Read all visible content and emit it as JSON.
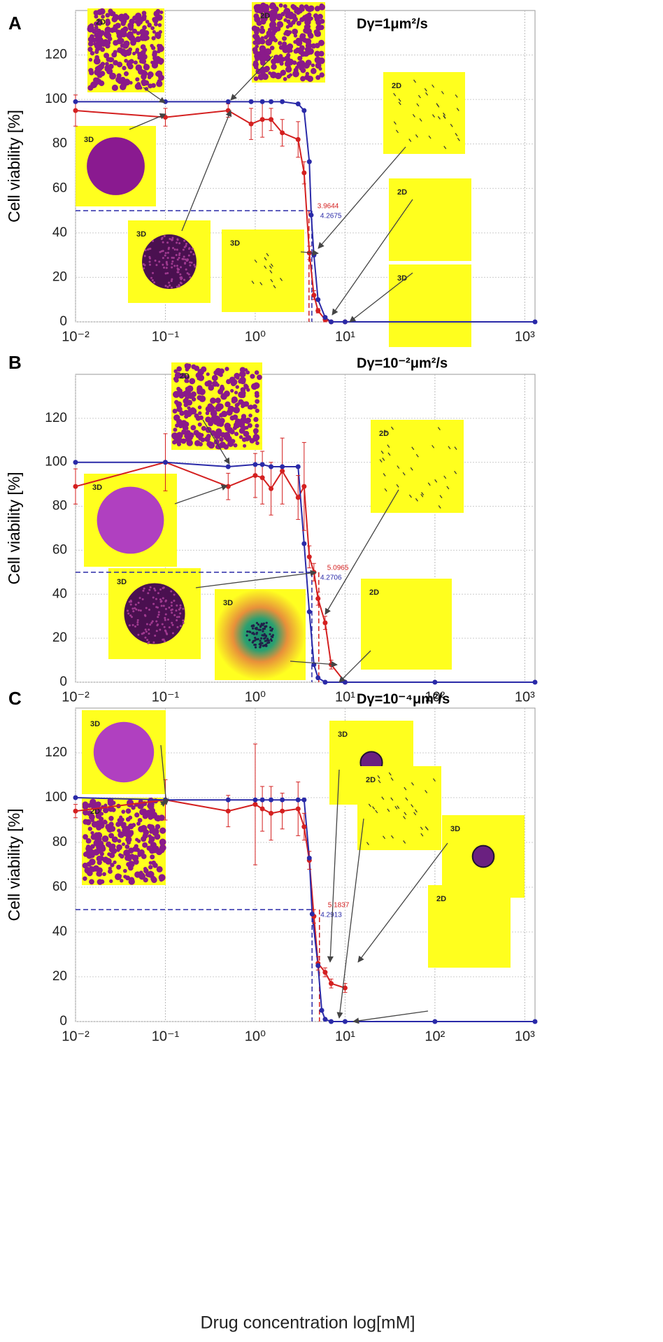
{
  "chart_data": [
    {
      "type": "line",
      "panel": "A",
      "title": "Dγ=1μm²/s",
      "ylabel": "Cell viability [%]",
      "xlog": true,
      "xlim": [
        0.01,
        1300
      ],
      "ylim": [
        0,
        140
      ],
      "grid": true,
      "reference_y": 50,
      "xticks": [
        {
          "value": 0.01,
          "label": "10⁻²"
        },
        {
          "value": 0.1,
          "label": "10⁻¹"
        },
        {
          "value": 1,
          "label": "10⁰"
        },
        {
          "value": 10,
          "label": "10¹"
        },
        {
          "value": 1000,
          "label": "10³"
        }
      ],
      "yticks": [
        0,
        20,
        40,
        60,
        80,
        100,
        120
      ],
      "insets": [
        "2D",
        "3D",
        "3D",
        "2D",
        "3D",
        "2D",
        "2D",
        "3D"
      ],
      "series": [
        {
          "name": "red",
          "color": "#d42020",
          "ic50": 3.9644,
          "x": [
            0.01,
            0.1,
            0.5,
            0.9,
            1.2,
            1.5,
            2,
            3,
            3.5,
            4,
            4.5,
            5,
            6,
            7,
            10
          ],
          "values": [
            95,
            92,
            95,
            89,
            91,
            91,
            85,
            82,
            67,
            31,
            12,
            5,
            1,
            0,
            0
          ],
          "errors": [
            7,
            4,
            3,
            7,
            8,
            5,
            6,
            8,
            5,
            3,
            2,
            1,
            1,
            0,
            0
          ]
        },
        {
          "name": "blue",
          "color": "#2a2aa8",
          "ic50": 4.2675,
          "x": [
            0.01,
            0.1,
            0.5,
            0.9,
            1.2,
            1.5,
            2,
            3,
            3.5,
            4,
            4.2,
            4.5,
            5,
            6,
            7,
            10,
            1300
          ],
          "values": [
            99,
            99,
            99,
            99,
            99,
            99,
            99,
            98,
            95,
            72,
            48,
            30,
            10,
            2,
            0,
            0,
            0
          ]
        }
      ]
    },
    {
      "type": "line",
      "panel": "B",
      "title": "Dγ=10⁻²μm²/s",
      "ylabel": "Cell viability [%]",
      "xlog": true,
      "xlim": [
        0.01,
        1300
      ],
      "ylim": [
        0,
        140
      ],
      "grid": true,
      "reference_y": 50,
      "xticks": [
        {
          "value": 0.01,
          "label": "10⁻²"
        },
        {
          "value": 0.1,
          "label": "10⁻¹"
        },
        {
          "value": 1,
          "label": "10⁰"
        },
        {
          "value": 10,
          "label": "10¹"
        },
        {
          "value": 100,
          "label": "10²"
        },
        {
          "value": 1000,
          "label": "10³"
        }
      ],
      "yticks": [
        0,
        20,
        40,
        60,
        80,
        100,
        120
      ],
      "insets": [
        "2D",
        "3D",
        "3D",
        "3D",
        "2D",
        "2D"
      ],
      "series": [
        {
          "name": "red",
          "color": "#d42020",
          "ic50": 5.0965,
          "x": [
            0.01,
            0.1,
            0.5,
            1,
            1.2,
            1.5,
            2,
            3,
            3.5,
            4,
            4.5,
            5,
            6,
            7,
            10
          ],
          "values": [
            89,
            100,
            89,
            94,
            93,
            88,
            96,
            84,
            89,
            57,
            50,
            38,
            27,
            8,
            0
          ],
          "errors": [
            8,
            13,
            6,
            10,
            12,
            12,
            15,
            10,
            20,
            5,
            4,
            3,
            3,
            2,
            0
          ]
        },
        {
          "name": "blue",
          "color": "#2a2aa8",
          "ic50": 4.2706,
          "x": [
            0.01,
            0.1,
            0.5,
            1,
            1.2,
            1.5,
            2,
            3,
            3.5,
            4,
            4.5,
            5,
            6,
            10,
            100,
            1300
          ],
          "values": [
            100,
            100,
            98,
            99,
            99,
            98,
            98,
            98,
            63,
            32,
            8,
            2,
            0,
            0,
            0,
            0
          ]
        }
      ]
    },
    {
      "type": "line",
      "panel": "C",
      "title": "Dγ=10⁻⁴μm²/s",
      "ylabel": "Cell viability [%]",
      "xlabel": "Drug concentration log[mM]",
      "xlog": true,
      "xlim": [
        0.01,
        1300
      ],
      "ylim": [
        0,
        140
      ],
      "grid": true,
      "reference_y": 50,
      "xticks": [
        {
          "value": 0.01,
          "label": "10⁻²"
        },
        {
          "value": 0.1,
          "label": "10⁻¹"
        },
        {
          "value": 1,
          "label": "10⁰"
        },
        {
          "value": 10,
          "label": "10¹"
        },
        {
          "value": 100,
          "label": "10²"
        },
        {
          "value": 1000,
          "label": "10³"
        }
      ],
      "yticks": [
        0,
        20,
        40,
        60,
        80,
        100,
        120
      ],
      "insets": [
        "3D",
        "2D",
        "3D",
        "2D",
        "3D",
        "2D"
      ],
      "series": [
        {
          "name": "red",
          "color": "#d42020",
          "ic50": 5.1837,
          "x": [
            0.01,
            0.1,
            0.5,
            1,
            1.2,
            1.5,
            2,
            3,
            3.5,
            4,
            4.5,
            5,
            6,
            7,
            10
          ],
          "values": [
            94,
            99,
            94,
            97,
            95,
            93,
            94,
            95,
            87,
            72,
            47,
            26,
            22,
            17,
            15
          ],
          "errors": [
            3,
            9,
            7,
            27,
            10,
            12,
            8,
            12,
            6,
            4,
            3,
            3,
            2,
            2,
            2
          ]
        },
        {
          "name": "blue",
          "color": "#2a2aa8",
          "ic50": 4.2913,
          "x": [
            0.01,
            0.1,
            0.5,
            1,
            1.2,
            1.5,
            2,
            3,
            3.5,
            4,
            4.3,
            5,
            5.5,
            6,
            7,
            10,
            100,
            1300
          ],
          "values": [
            100,
            99,
            99,
            99,
            99,
            99,
            99,
            99,
            99,
            73,
            48,
            25,
            5,
            1,
            0,
            0,
            0,
            0
          ]
        }
      ]
    }
  ]
}
